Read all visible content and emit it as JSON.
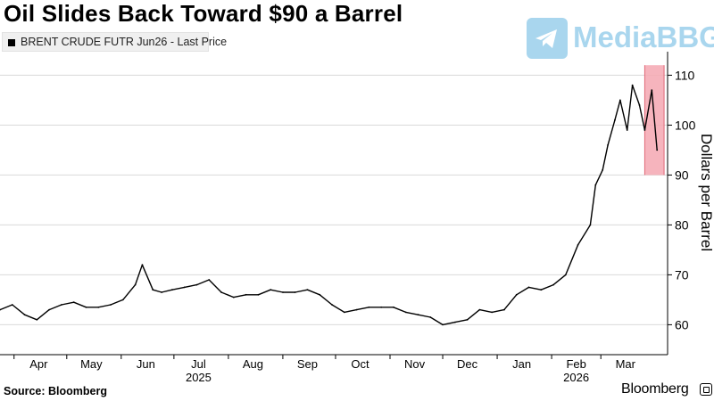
{
  "title": "Oil Slides Back Toward $90 a Barrel",
  "legend_label": "BRENT CRUDE FUTR Jun26 - Last Price",
  "watermark_text": "MediaBBG",
  "source": "Source: Bloomberg",
  "brand": "Bloomberg",
  "colors": {
    "series": "#000000",
    "highlight": "#f4a7b1",
    "highlight_edge": "#e06878",
    "grid": "#d9d9d9",
    "watermark": "#a9d6ee"
  },
  "chart_data": {
    "type": "line",
    "ylabel": "Dollars per Barrel",
    "ylim": [
      54,
      114
    ],
    "yticks": [
      60,
      70,
      80,
      90,
      100,
      110
    ],
    "xlim": [
      "2025-03-24",
      "2026-04-08"
    ],
    "x_tick_labels": [
      {
        "label": "Apr",
        "date": "2025-04-15"
      },
      {
        "label": "May",
        "date": "2025-05-15"
      },
      {
        "label": "Jun",
        "date": "2025-06-15"
      },
      {
        "label": "Jul",
        "date": "2025-07-15"
      },
      {
        "label": "Aug",
        "date": "2025-08-15"
      },
      {
        "label": "Sep",
        "date": "2025-09-15"
      },
      {
        "label": "Oct",
        "date": "2025-10-15"
      },
      {
        "label": "Nov",
        "date": "2025-11-15"
      },
      {
        "label": "Dec",
        "date": "2025-12-15"
      },
      {
        "label": "Jan",
        "date": "2026-01-15"
      },
      {
        "label": "Feb",
        "date": "2026-02-15"
      },
      {
        "label": "Mar",
        "date": "2026-03-15"
      }
    ],
    "year_labels": [
      {
        "label": "2025",
        "date": "2025-07-15"
      },
      {
        "label": "2026",
        "date": "2026-02-15"
      }
    ],
    "highlight_range": {
      "x": [
        "2026-03-26",
        "2026-04-06"
      ],
      "y": [
        90,
        112
      ]
    },
    "series": [
      {
        "x": [
          "2025-03-24",
          "2025-03-31",
          "2025-04-07",
          "2025-04-14",
          "2025-04-21",
          "2025-04-28",
          "2025-05-05",
          "2025-05-12",
          "2025-05-19",
          "2025-05-26",
          "2025-06-02",
          "2025-06-09",
          "2025-06-13",
          "2025-06-19",
          "2025-06-24",
          "2025-06-30",
          "2025-07-07",
          "2025-07-14",
          "2025-07-21",
          "2025-07-28",
          "2025-08-04",
          "2025-08-11",
          "2025-08-18",
          "2025-08-25",
          "2025-09-01",
          "2025-09-08",
          "2025-09-15",
          "2025-09-22",
          "2025-09-29",
          "2025-10-06",
          "2025-10-13",
          "2025-10-20",
          "2025-10-27",
          "2025-11-03",
          "2025-11-10",
          "2025-11-17",
          "2025-11-24",
          "2025-12-01",
          "2025-12-08",
          "2025-12-15",
          "2025-12-22",
          "2025-12-29",
          "2026-01-05",
          "2026-01-12",
          "2026-01-19",
          "2026-01-26",
          "2026-02-02",
          "2026-02-09",
          "2026-02-16",
          "2026-02-23",
          "2026-02-26",
          "2026-03-02",
          "2026-03-05",
          "2026-03-09",
          "2026-03-12",
          "2026-03-16",
          "2026-03-19",
          "2026-03-23",
          "2026-03-26",
          "2026-03-30",
          "2026-04-02"
        ],
        "y": [
          63,
          64,
          62,
          61,
          63,
          64,
          64.5,
          63.5,
          63.5,
          64,
          65,
          68,
          72,
          67,
          66.5,
          67,
          67.5,
          68,
          69,
          66.5,
          65.5,
          66,
          66,
          67,
          66.5,
          66.5,
          67,
          66,
          64,
          62.5,
          63,
          63.5,
          63.5,
          63.5,
          62.5,
          62,
          61.5,
          60,
          60.5,
          61,
          63,
          62.5,
          63,
          66,
          67.5,
          67,
          68,
          70,
          76,
          80,
          88,
          91,
          96,
          101,
          105,
          99,
          108,
          104,
          99,
          107,
          95
        ]
      }
    ]
  }
}
